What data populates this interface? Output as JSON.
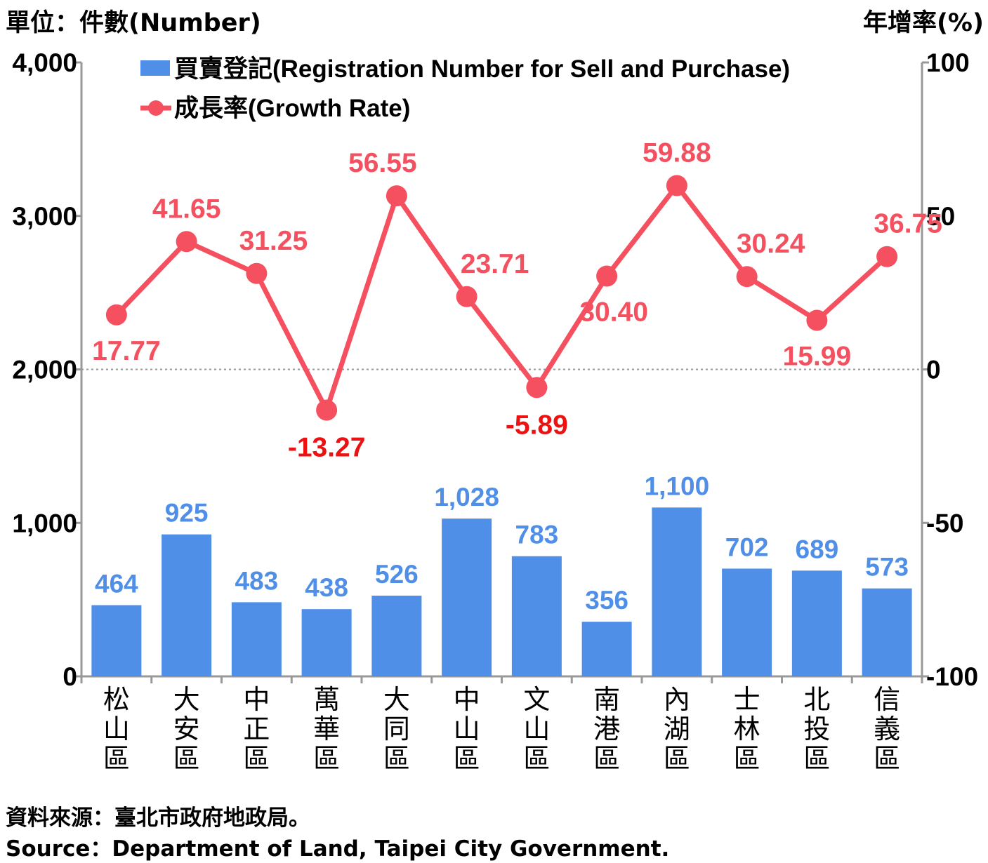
{
  "header": {
    "left_unit": "單位：件數(Number)",
    "right_unit": "年增率(%)"
  },
  "footer": {
    "source_zh": "資料來源：臺北市政府地政局。",
    "source_en": "Source：Department of Land, Taipei City Government."
  },
  "colors": {
    "bar": "#4f8fe8",
    "line": "#f5505f",
    "negative_label": "#ee1111",
    "axis": "#999999"
  },
  "chart_data": {
    "type": "bar+line",
    "categories": [
      "松山區",
      "大安區",
      "中正區",
      "萬華區",
      "大同區",
      "中山區",
      "文山區",
      "南港區",
      "內湖區",
      "士林區",
      "北投區",
      "信義區"
    ],
    "series": [
      {
        "name": "買賣登記(Registration Number for Sell and Purchase)",
        "type": "bar",
        "axis": "left",
        "values": [
          464,
          925,
          483,
          438,
          526,
          1028,
          783,
          356,
          1100,
          702,
          689,
          573
        ],
        "labels": [
          "464",
          "925",
          "483",
          "438",
          "526",
          "1,028",
          "783",
          "356",
          "1,100",
          "702",
          "689",
          "573"
        ]
      },
      {
        "name": "成長率(Growth Rate)",
        "type": "line",
        "axis": "right",
        "values": [
          17.77,
          41.65,
          31.25,
          -13.27,
          56.55,
          23.71,
          -5.89,
          30.4,
          59.88,
          30.24,
          15.99,
          36.75
        ],
        "labels": [
          "17.77",
          "41.65",
          "31.25",
          "-13.27",
          "56.55",
          "23.71",
          "-5.89",
          "30.40",
          "59.88",
          "30.24",
          "15.99",
          "36.75"
        ]
      }
    ],
    "y_left": {
      "ylim": [
        0,
        4000
      ],
      "ticks": [
        "0",
        "1,000",
        "2,000",
        "3,000",
        "4,000"
      ]
    },
    "y_right": {
      "ylim": [
        -100,
        100
      ],
      "ticks": [
        "-100",
        "-50",
        "0",
        "50",
        "100"
      ]
    },
    "reference_line": 0,
    "legend": "top-left",
    "grid": false
  }
}
